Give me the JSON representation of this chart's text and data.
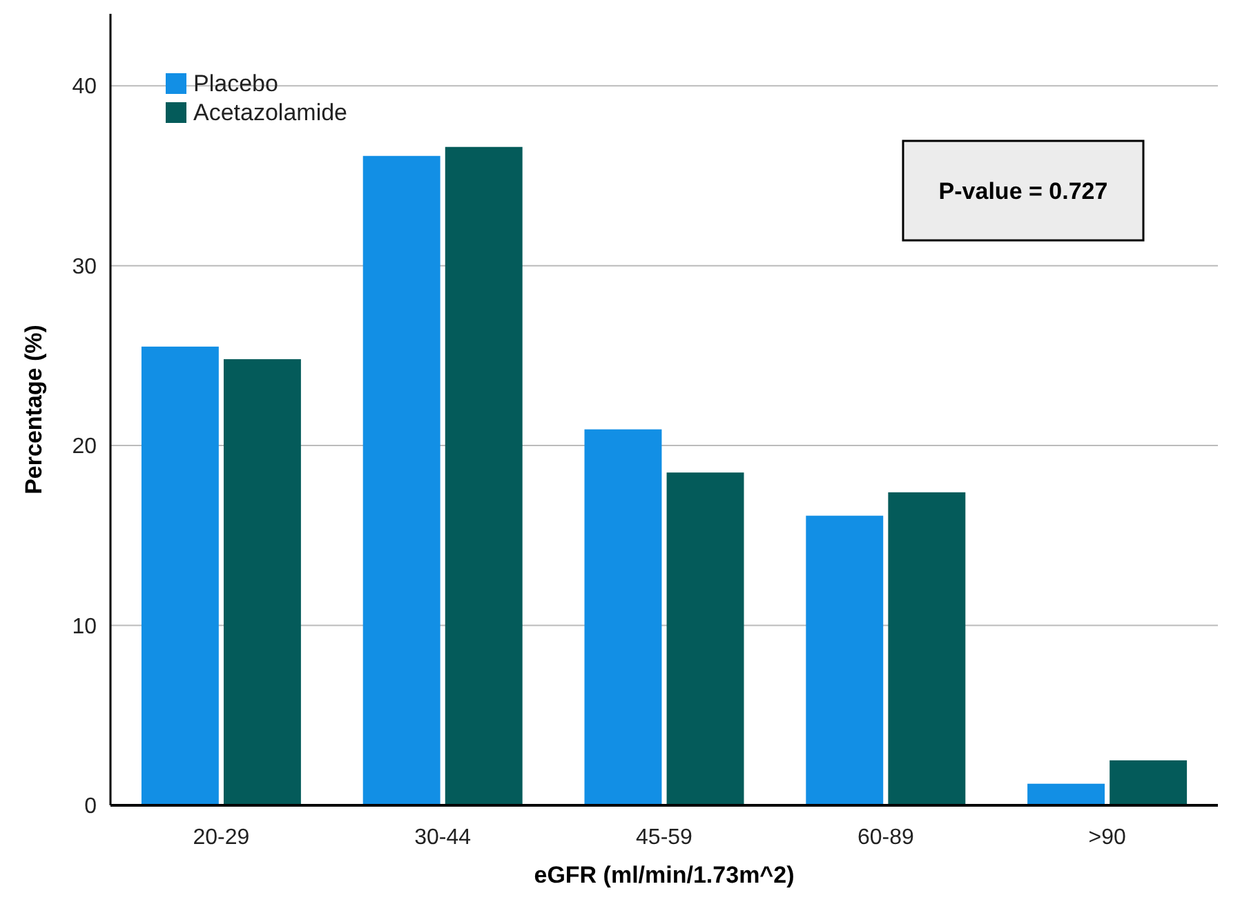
{
  "chart_data": {
    "type": "bar",
    "xlabel": "eGFR (ml/min/1.73m^2)",
    "ylabel": "Percentage (%)",
    "categories": [
      "20-29",
      "30-44",
      "45-59",
      "60-89",
      ">90"
    ],
    "series": [
      {
        "name": "Placebo",
        "color": "#128fe5",
        "values": [
          25.5,
          36.1,
          20.9,
          16.1,
          1.2
        ]
      },
      {
        "name": "Acetazolamide",
        "color": "#045b5a",
        "values": [
          24.8,
          36.6,
          18.5,
          17.4,
          2.5
        ]
      }
    ],
    "ylim": [
      0,
      44
    ],
    "yticks": [
      0,
      10,
      20,
      30,
      40
    ],
    "grid": "y",
    "legend": "top left",
    "annotations": [
      "P-value = 0.727"
    ]
  }
}
